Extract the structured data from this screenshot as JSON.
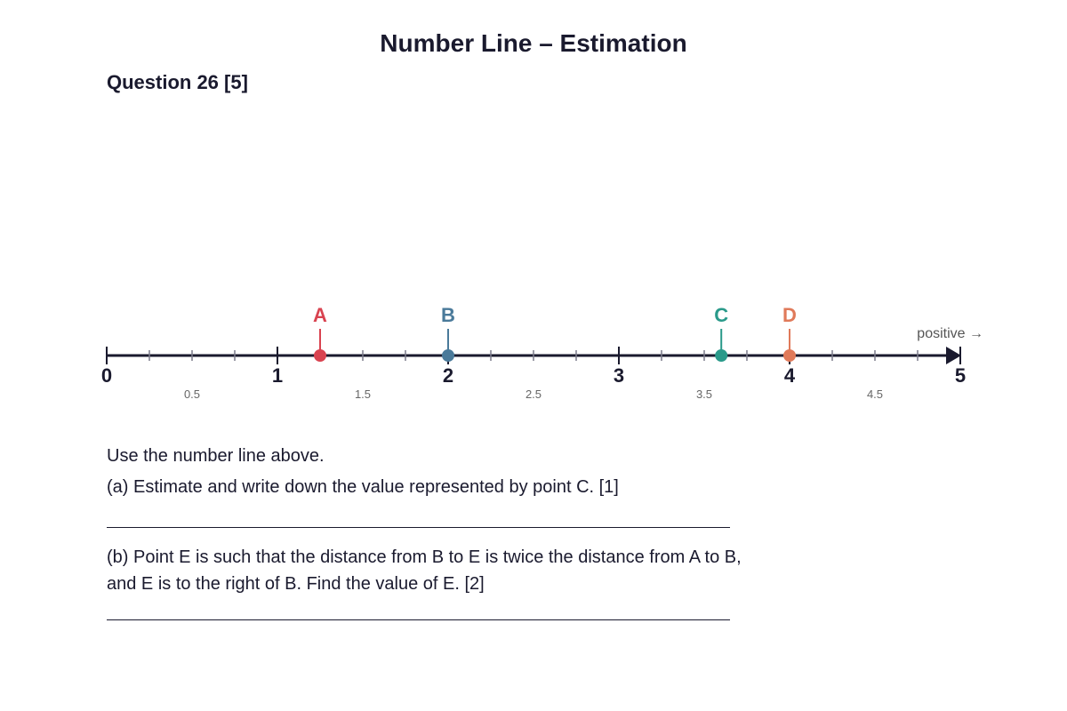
{
  "title": "Number Line – Estimation",
  "question": {
    "heading": "Question 26 [5]"
  },
  "number_line": {
    "min": 0,
    "max": 5,
    "minor_step": 0.25,
    "major_labels": [
      "0",
      "1",
      "2",
      "3",
      "4",
      "5"
    ],
    "half_labels": [
      "0.5",
      "1.5",
      "2.5",
      "3.5",
      "4.5"
    ],
    "direction_label": "positive →",
    "points": [
      {
        "label": "A",
        "value": 1.25,
        "color": "#d94350"
      },
      {
        "label": "B",
        "value": 2.0,
        "color": "#4a7a9a"
      },
      {
        "label": "C",
        "value": 3.6,
        "color": "#2a9a8a"
      },
      {
        "label": "D",
        "value": 4.0,
        "color": "#e07a5a"
      }
    ],
    "axis_color": "#1a1a2e",
    "minor_tick_color": "#7a7a8a",
    "half_label_color": "#666666"
  },
  "instructions": "Use the number line above.",
  "part_a": "(a) Estimate and write down the value represented by point C. [1]",
  "part_b": {
    "line1": "(b) Point E is such that the distance from B to E is twice the distance from A to B,",
    "line2": "and E is to the right of B. Find the value of E. [2]"
  }
}
